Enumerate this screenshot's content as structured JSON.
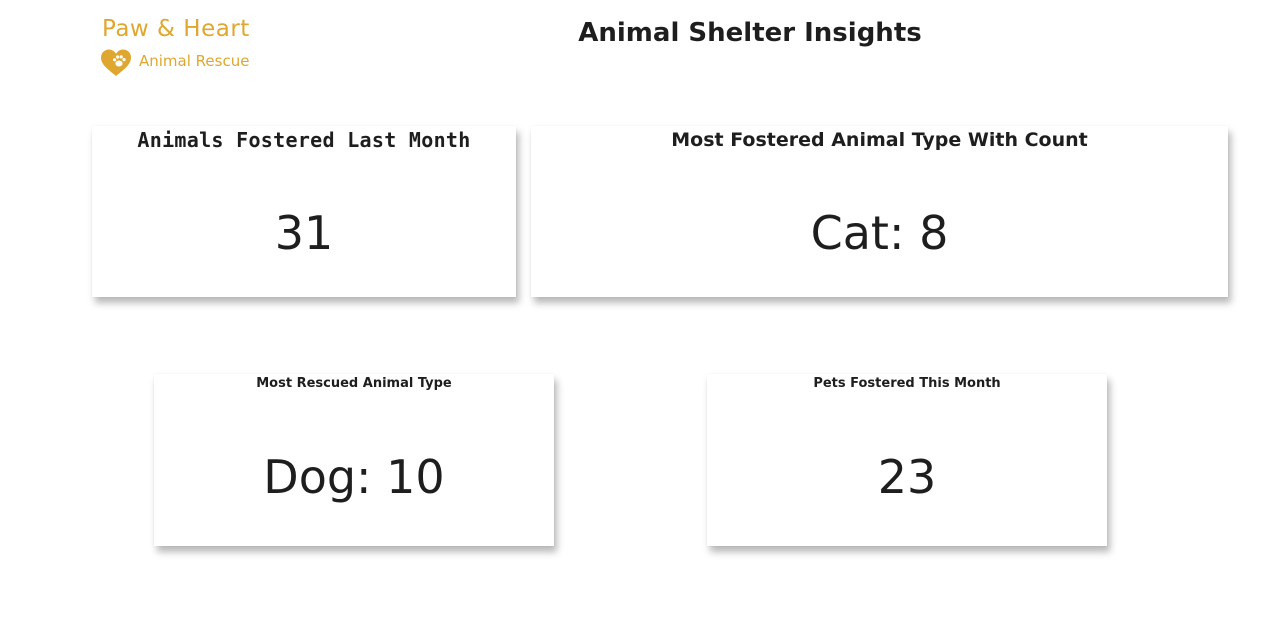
{
  "logo": {
    "name": "Paw & Heart",
    "subtitle": "Animal Rescue",
    "icon": "heart-paw-icon",
    "color": "#e0a730"
  },
  "header": {
    "title": "Animal Shelter Insights"
  },
  "cards": [
    {
      "title": "Animals Fostered Last Month",
      "value": "31"
    },
    {
      "title": "Most Fostered Animal Type With Count",
      "value": "Cat: 8"
    },
    {
      "title": "Most Rescued Animal Type",
      "value": "Dog: 10"
    },
    {
      "title": "Pets Fostered This Month",
      "value": "23"
    }
  ]
}
